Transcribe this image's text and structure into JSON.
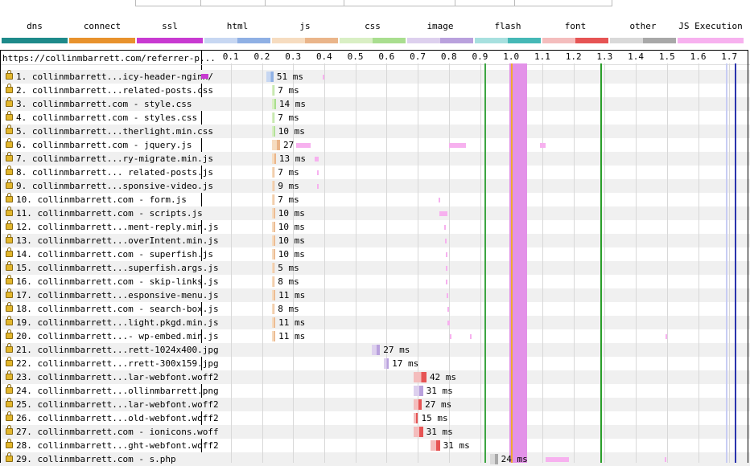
{
  "page_url": "https://collinmbarrett.com/referrer-p...",
  "legend": [
    {
      "label": "dns",
      "name": "dns",
      "c1": "#1e8a8a",
      "c2": "#1e8a8a"
    },
    {
      "label": "connect",
      "name": "connect",
      "c1": "#e8922d",
      "c2": "#e8922d"
    },
    {
      "label": "ssl",
      "name": "ssl",
      "c1": "#c83ad1",
      "c2": "#c83ad1"
    },
    {
      "label": "html",
      "name": "html",
      "c1": "#c7d7f2",
      "c2": "#8fb0e4"
    },
    {
      "label": "js",
      "name": "js",
      "c1": "#f6dcc0",
      "c2": "#eab58a"
    },
    {
      "label": "css",
      "name": "css",
      "c1": "#d9efc4",
      "c2": "#a9de8f"
    },
    {
      "label": "image",
      "name": "image",
      "c1": "#ddd0ee",
      "c2": "#b9a1dd"
    },
    {
      "label": "flash",
      "name": "flash",
      "c1": "#a7e0df",
      "c2": "#45b8b6"
    },
    {
      "label": "font",
      "name": "font",
      "c1": "#f4bdbd",
      "c2": "#e65454"
    },
    {
      "label": "other",
      "name": "other",
      "c1": "#d9d9d9",
      "c2": "#a8a8a8"
    },
    {
      "label": "JS Execution",
      "name": "js-execution",
      "c1": "#f7b1ef",
      "c2": "#f7b1ef"
    }
  ],
  "ticks": [
    "0.1",
    "0.2",
    "0.3",
    "0.4",
    "0.5",
    "0.6",
    "0.7",
    "0.8",
    "0.9",
    "1.0",
    "1.1",
    "1.2",
    "1.3",
    "1.4",
    "1.5",
    "1.6",
    "1.7"
  ],
  "events": [
    {
      "t": 0.915,
      "color": "#3da542",
      "name": "start-render-line"
    },
    {
      "t": 0.999,
      "color": "#f0a830",
      "name": "dom-content-loaded-line"
    },
    {
      "t": 1.285,
      "color": "#2a9e2a",
      "name": "document-complete-line"
    },
    {
      "t": 1.69,
      "color": "#c8cdf4",
      "name": "on-load-line"
    },
    {
      "t": 1.717,
      "color": "#2b34ad",
      "name": "fully-loaded-line"
    }
  ],
  "main_thread_blocks": [
    {
      "t0": 0.995,
      "t1": 1.05,
      "color": "#e392e8"
    }
  ],
  "requests": [
    {
      "num": "1.",
      "label": "collinmbarrett...icy-header-nginx/",
      "type": "html",
      "t0": 0.213,
      "t1": 0.237,
      "ssl0": 0.0,
      "ssl1": 0.022,
      "ms": "51 ms",
      "exec": [
        [
          0.395,
          0.4
        ]
      ]
    },
    {
      "num": "2.",
      "label": "collinmbarrett...related-posts.css",
      "type": "css",
      "t0": 0.233,
      "t1": 0.239,
      "ms": "7 ms",
      "exec": []
    },
    {
      "num": "3.",
      "label": "collinmbarrett.com - style.css",
      "type": "css",
      "t0": 0.233,
      "t1": 0.245,
      "ms": "14 ms",
      "exec": []
    },
    {
      "num": "4.",
      "label": "collinmbarrett.com - styles.css",
      "type": "css",
      "t0": 0.233,
      "t1": 0.239,
      "ms": "7 ms",
      "exec": []
    },
    {
      "num": "5.",
      "label": "collinmbarrett...therlight.min.css",
      "type": "css",
      "t0": 0.233,
      "t1": 0.242,
      "ms": "10 ms",
      "exec": []
    },
    {
      "num": "6.",
      "label": "collinmbarrett.com - jquery.js",
      "type": "js",
      "t0": 0.233,
      "t1": 0.258,
      "ms": "27 ms",
      "exec": [
        [
          0.31,
          0.355
        ],
        [
          0.8,
          0.855
        ],
        [
          1.092,
          1.11
        ]
      ]
    },
    {
      "num": "7.",
      "label": "collinmbarrett...ry-migrate.min.js",
      "type": "js",
      "t0": 0.233,
      "t1": 0.245,
      "ms": "13 ms",
      "exec": [
        [
          0.37,
          0.382
        ]
      ]
    },
    {
      "num": "8.",
      "label": "collinmbarrett... related-posts.js",
      "type": "js",
      "t0": 0.233,
      "t1": 0.239,
      "ms": "7 ms",
      "exec": [
        [
          0.376,
          0.382
        ]
      ]
    },
    {
      "num": "9.",
      "label": "collinmbarrett...sponsive-video.js",
      "type": "js",
      "t0": 0.233,
      "t1": 0.241,
      "ms": "9 ms",
      "exec": [
        [
          0.378,
          0.382
        ]
      ]
    },
    {
      "num": "10.",
      "label": "collinmbarrett.com - form.js",
      "type": "js",
      "t0": 0.233,
      "t1": 0.239,
      "ms": "7 ms",
      "exec": [
        [
          0.768,
          0.772
        ]
      ]
    },
    {
      "num": "11.",
      "label": "collinmbarrett.com - scripts.js",
      "type": "js",
      "t0": 0.233,
      "t1": 0.242,
      "ms": "10 ms",
      "exec": [
        [
          0.77,
          0.795
        ]
      ]
    },
    {
      "num": "12.",
      "label": "collinmbarrett...ment-reply.min.js",
      "type": "js",
      "t0": 0.233,
      "t1": 0.242,
      "ms": "10 ms",
      "exec": [
        [
          0.786,
          0.79
        ]
      ]
    },
    {
      "num": "13.",
      "label": "collinmbarrett...overIntent.min.js",
      "type": "js",
      "t0": 0.233,
      "t1": 0.242,
      "ms": "10 ms",
      "exec": [
        [
          0.788,
          0.792
        ]
      ]
    },
    {
      "num": "14.",
      "label": "collinmbarrett.com - superfish.js",
      "type": "js",
      "t0": 0.233,
      "t1": 0.242,
      "ms": "10 ms",
      "exec": [
        [
          0.789,
          0.795
        ]
      ]
    },
    {
      "num": "15.",
      "label": "collinmbarrett...superfish.args.js",
      "type": "js",
      "t0": 0.233,
      "t1": 0.238,
      "ms": "5 ms",
      "exec": [
        [
          0.79,
          0.794
        ]
      ]
    },
    {
      "num": "16.",
      "label": "collinmbarrett.com - skip-links.js",
      "type": "js",
      "t0": 0.233,
      "t1": 0.24,
      "ms": "8 ms",
      "exec": [
        [
          0.791,
          0.795
        ]
      ]
    },
    {
      "num": "17.",
      "label": "collinmbarrett...esponsive-menu.js",
      "type": "js",
      "t0": 0.233,
      "t1": 0.243,
      "ms": "11 ms",
      "exec": [
        [
          0.792,
          0.798
        ]
      ]
    },
    {
      "num": "18.",
      "label": "collinmbarrett.com - search-box.js",
      "type": "js",
      "t0": 0.233,
      "t1": 0.24,
      "ms": "8 ms",
      "exec": [
        [
          0.794,
          0.798
        ]
      ]
    },
    {
      "num": "19.",
      "label": "collinmbarrett...light.pkgd.min.js",
      "type": "js",
      "t0": 0.233,
      "t1": 0.243,
      "ms": "11 ms",
      "exec": [
        [
          0.796,
          0.802
        ]
      ]
    },
    {
      "num": "20.",
      "label": "collinmbarrett...- wp-embed.min.js",
      "type": "js",
      "t0": 0.233,
      "t1": 0.243,
      "ms": "11 ms",
      "exec": [
        [
          0.803,
          0.807
        ],
        [
          0.868,
          0.872
        ],
        [
          1.495,
          1.5
        ]
      ]
    },
    {
      "num": "21.",
      "label": "collinmbarrett...rett-1024x400.jpg",
      "type": "image",
      "t0": 0.552,
      "t1": 0.579,
      "ms": "27 ms",
      "exec": []
    },
    {
      "num": "22.",
      "label": "collinmbarrett...rrett-300x159.jpg",
      "type": "image",
      "t0": 0.59,
      "t1": 0.607,
      "ms": "17 ms",
      "exec": []
    },
    {
      "num": "23.",
      "label": "collinmbarrett...lar-webfont.woff2",
      "type": "font",
      "t0": 0.686,
      "t1": 0.728,
      "ms": "42 ms",
      "exec": []
    },
    {
      "num": "24.",
      "label": "collinmbarrett...ollinmbarrett.png",
      "type": "image",
      "t0": 0.686,
      "t1": 0.717,
      "ms": "31 ms",
      "exec": []
    },
    {
      "num": "25.",
      "label": "collinmbarrett...lar-webfont.woff2",
      "type": "font",
      "t0": 0.686,
      "t1": 0.713,
      "ms": "27 ms",
      "exec": []
    },
    {
      "num": "26.",
      "label": "collinmbarrett...old-webfont.woff2",
      "type": "font",
      "t0": 0.686,
      "t1": 0.701,
      "ms": "15 ms",
      "exec": []
    },
    {
      "num": "27.",
      "label": "collinmbarrett.com - ionicons.woff",
      "type": "font",
      "t0": 0.686,
      "t1": 0.717,
      "ms": "31 ms",
      "exec": []
    },
    {
      "num": "28.",
      "label": "collinmbarrett...ght-webfont.woff2",
      "type": "font",
      "t0": 0.74,
      "t1": 0.771,
      "ms": "31 ms",
      "exec": []
    },
    {
      "num": "29.",
      "label": "collinmbarrett.com - s.php",
      "type": "other",
      "t0": 0.933,
      "t1": 0.957,
      "ms": "24 ms",
      "exec": [
        [
          1.111,
          1.185
        ],
        [
          1.492,
          1.496
        ]
      ]
    }
  ]
}
